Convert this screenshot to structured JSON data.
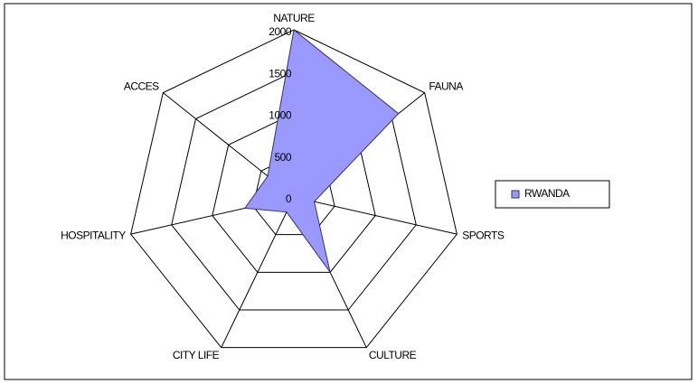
{
  "chart_data": {
    "type": "radar",
    "categories": [
      "NATURE",
      "FAUNA",
      "SPORTS",
      "CULTURE",
      "CITY LIFE",
      "HOSPITALITY",
      "ACCES"
    ],
    "series": [
      {
        "name": "RWANDA",
        "color": "#9999ff",
        "values": [
          2000,
          1600,
          250,
          1000,
          200,
          600,
          400
        ]
      }
    ],
    "ylim": [
      0,
      2000
    ],
    "yticks": [
      0,
      500,
      1000,
      1500,
      2000
    ],
    "grid": true,
    "legend": "right"
  }
}
